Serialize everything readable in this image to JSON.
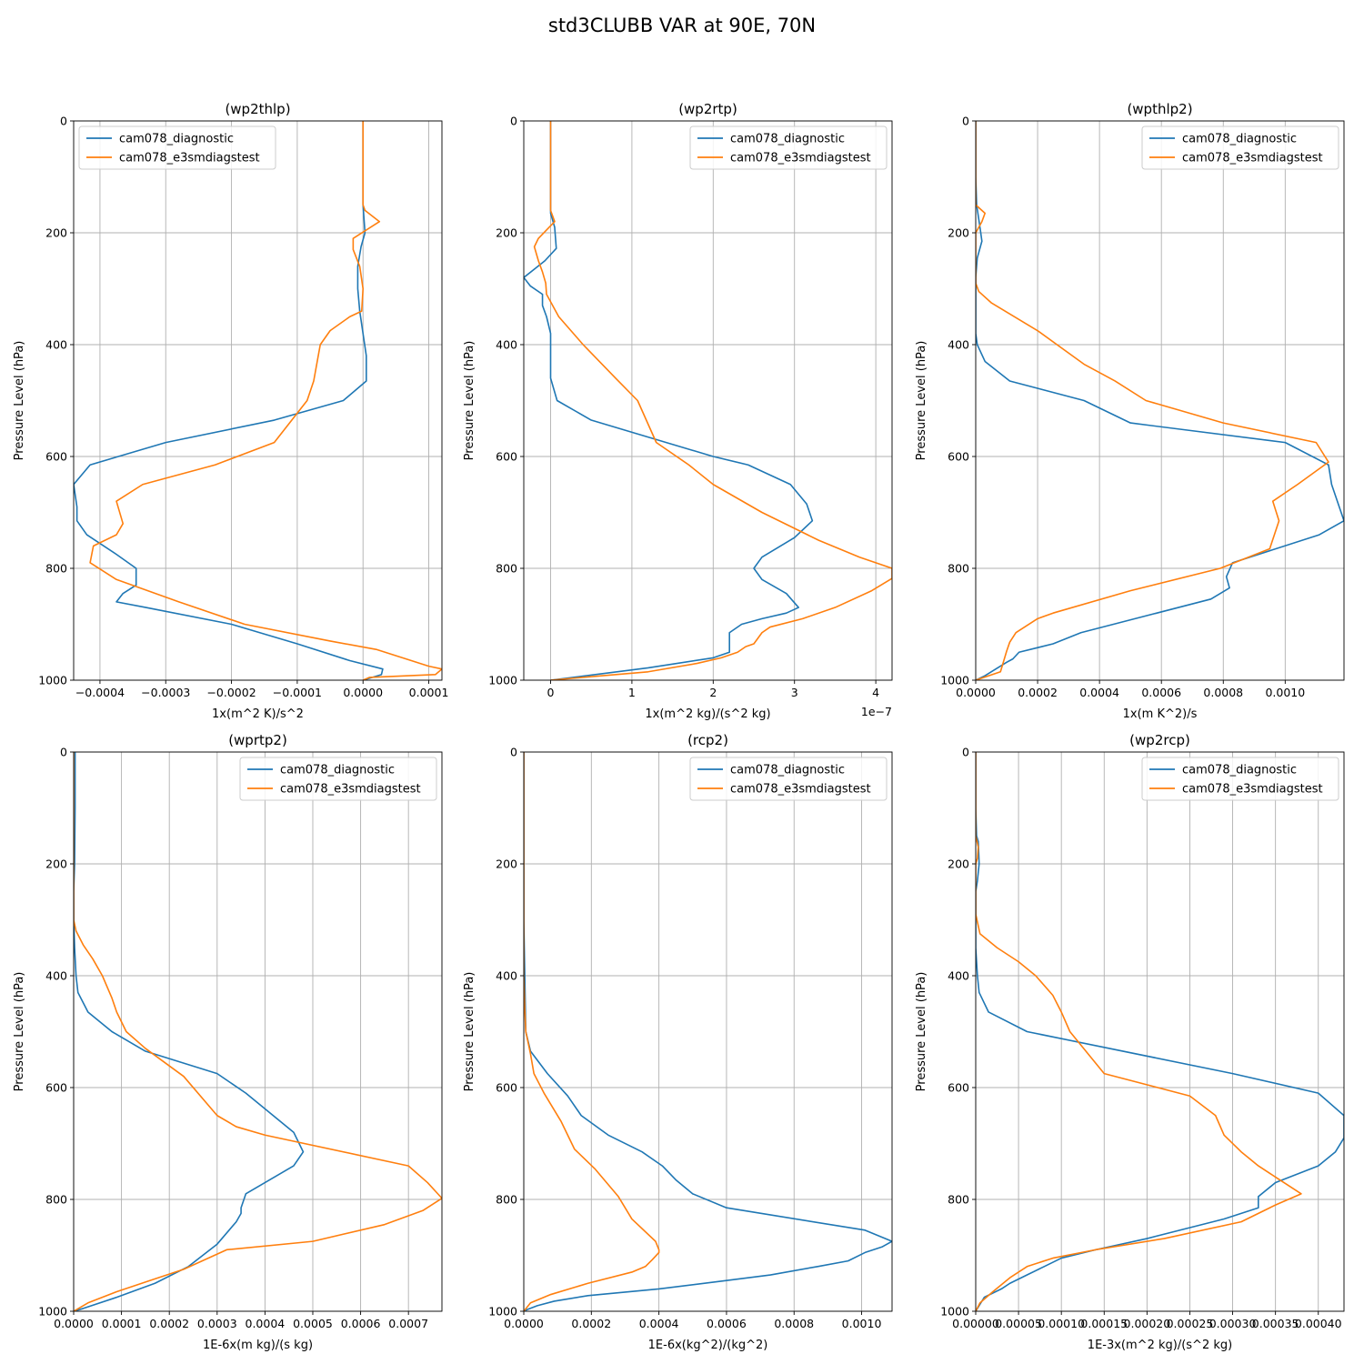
{
  "figure_title": "std3CLUBB VAR at 90E, 70N",
  "colors": {
    "series1": "#1f77b4",
    "series2": "#ff7f0e",
    "grid": "#b0b0b0"
  },
  "chart_data": [
    {
      "type": "line",
      "title": "(wp2thlp)",
      "xlabel": "1x(m^2 K)/s^2",
      "ylabel": "Pressure Level (hPa)",
      "xlim": [
        -0.00044,
        0.00012
      ],
      "ylim": [
        1000,
        0
      ],
      "xticks": [
        -0.0004,
        -0.0003,
        -0.0002,
        -0.0001,
        0.0,
        0.0001
      ],
      "xticklabels": [
        "−0.0004",
        "−0.0003",
        "−0.0002",
        "−0.0001",
        "0.0000",
        "0.0001"
      ],
      "yticks": [
        0,
        200,
        400,
        600,
        800,
        1000
      ],
      "yticklabels": [
        "0",
        "200",
        "400",
        "600",
        "800",
        "1000"
      ],
      "legend": "upper-left",
      "grid": true,
      "series": [
        {
          "name": "cam078_diagnostic",
          "x": [
            0.0,
            0.0,
            0.0,
            3e-06,
            -3e-06,
            -8e-06,
            -8e-06,
            -5e-06,
            0.0,
            5e-06,
            5e-06,
            -3e-05,
            -0.000135,
            -0.0003,
            -0.000415,
            -0.00044,
            -0.000435,
            -0.000435,
            -0.00042,
            -0.000375,
            -0.000345,
            -0.000345,
            -0.000365,
            -0.000375,
            -0.00033,
            -0.0002,
            -0.0001,
            -2e-05,
            3e-05,
            2.8e-05,
            0.0
          ],
          "y": [
            0,
            100,
            150,
            200,
            225,
            260,
            300,
            340,
            380,
            420,
            465,
            500,
            535,
            575,
            615,
            650,
            690,
            715,
            740,
            775,
            800,
            830,
            845,
            860,
            870,
            900,
            935,
            965,
            980,
            990,
            1000
          ]
        },
        {
          "name": "cam078_e3smdiagstest",
          "x": [
            0.0,
            0.0,
            0.0,
            3e-06,
            2.5e-05,
            -1.5e-05,
            -1.5e-05,
            -5e-06,
            0.0,
            -2e-06,
            -2e-05,
            -5e-05,
            -6.5e-05,
            -7.5e-05,
            -8.5e-05,
            -0.000135,
            -0.000225,
            -0.000335,
            -0.000375,
            -0.000365,
            -0.000375,
            -0.00041,
            -0.000415,
            -0.000375,
            -0.00028,
            -0.00018,
            -5e-05,
            2e-05,
            0.0001,
            0.00012,
            0.00011,
            1e-05,
            0.0
          ],
          "y": [
            0,
            100,
            150,
            160,
            180,
            210,
            230,
            260,
            300,
            340,
            350,
            375,
            400,
            465,
            500,
            575,
            615,
            650,
            680,
            720,
            740,
            760,
            790,
            820,
            860,
            900,
            930,
            945,
            975,
            980,
            990,
            995,
            1000
          ]
        }
      ]
    },
    {
      "type": "line",
      "title": "(wp2rtp)",
      "xlabel": "1x(m^2 kg)/(s^2 kg)",
      "ylabel": "Pressure Level (hPa)",
      "offset_label": "1e−7",
      "xlim": [
        -0.33,
        4.2
      ],
      "ylim": [
        1000,
        0
      ],
      "xticks": [
        0,
        1,
        2,
        3,
        4
      ],
      "xticklabels": [
        "0",
        "1",
        "2",
        "3",
        "4"
      ],
      "yticks": [
        0,
        200,
        400,
        600,
        800,
        1000
      ],
      "yticklabels": [
        "0",
        "200",
        "400",
        "600",
        "800",
        "1000"
      ],
      "legend": "upper-right",
      "grid": true,
      "series": [
        {
          "name": "cam078_diagnostic",
          "x": [
            0.0,
            0.0,
            0.0,
            0.0,
            0.05,
            0.07,
            -0.07,
            -0.2,
            -0.33,
            -0.25,
            -0.1,
            -0.1,
            -0.05,
            0.0,
            0.0,
            0.0,
            0.08,
            0.5,
            2.0,
            2.43,
            2.95,
            3.15,
            3.22,
            3.0,
            2.6,
            2.5,
            2.6,
            2.9,
            3.05,
            2.9,
            2.6,
            2.35,
            2.2,
            2.2,
            2.2,
            2.2,
            2.0,
            1.2,
            0.0
          ],
          "y": [
            0,
            100,
            150,
            165,
            190,
            228,
            250,
            265,
            280,
            295,
            310,
            330,
            350,
            380,
            400,
            460,
            500,
            535,
            600,
            615,
            650,
            685,
            715,
            745,
            780,
            800,
            820,
            845,
            870,
            880,
            890,
            900,
            915,
            925,
            940,
            950,
            960,
            978,
            1000
          ]
        },
        {
          "name": "cam078_e3smdiagstest",
          "x": [
            0.0,
            0.0,
            0.0,
            0.0,
            0.05,
            -0.15,
            -0.2,
            -0.15,
            -0.1,
            -0.06,
            -0.05,
            0.1,
            0.4,
            0.8,
            1.07,
            1.3,
            1.7,
            2.0,
            2.6,
            3.3,
            3.8,
            4.2,
            4.2,
            3.95,
            3.5,
            3.1,
            2.7,
            2.6,
            2.5,
            2.4,
            2.3,
            2.1,
            1.8,
            1.2,
            0.0
          ],
          "y": [
            0,
            100,
            150,
            160,
            180,
            210,
            225,
            250,
            270,
            290,
            310,
            350,
            400,
            460,
            500,
            575,
            615,
            650,
            700,
            750,
            780,
            800,
            818,
            840,
            870,
            890,
            905,
            915,
            935,
            940,
            950,
            960,
            970,
            985,
            1000
          ]
        }
      ]
    },
    {
      "type": "line",
      "title": "(wpthlp2)",
      "xlabel": "1x(m K^2)/s",
      "ylabel": "Pressure Level (hPa)",
      "xlim": [
        0.0,
        0.00119
      ],
      "ylim": [
        1000,
        0
      ],
      "xticks": [
        0.0,
        0.0002,
        0.0004,
        0.0006,
        0.0008,
        0.001
      ],
      "xticklabels": [
        "0.0000",
        "0.0002",
        "0.0004",
        "0.0006",
        "0.0008",
        "0.0010"
      ],
      "yticks": [
        0,
        200,
        400,
        600,
        800,
        1000
      ],
      "yticklabels": [
        "0",
        "200",
        "400",
        "600",
        "800",
        "1000"
      ],
      "legend": "upper-right",
      "grid": true,
      "series": [
        {
          "name": "cam078_diagnostic",
          "x": [
            0.0,
            0.0,
            3e-06,
            1.5e-05,
            2e-05,
            5e-06,
            0.0,
            0.0,
            0.0,
            5e-06,
            3e-05,
            0.00011,
            0.00035,
            0.0005,
            0.001,
            0.00114,
            0.00115,
            0.00119,
            0.00111,
            0.00083,
            0.00081,
            0.00082,
            0.00076,
            0.00055,
            0.00034,
            0.00025,
            0.00014,
            0.00012,
            0.0001,
            3e-05,
            0.0
          ],
          "y": [
            0,
            100,
            150,
            195,
            215,
            245,
            280,
            320,
            380,
            400,
            430,
            465,
            500,
            540,
            575,
            615,
            650,
            715,
            740,
            790,
            815,
            835,
            855,
            885,
            915,
            935,
            950,
            962,
            968,
            992,
            1000
          ]
        },
        {
          "name": "cam078_e3smdiagstest",
          "x": [
            0.0,
            0.0,
            0.0,
            3e-05,
            2e-05,
            0.0,
            0.0,
            0.0,
            1e-05,
            5e-05,
            0.0002,
            0.00035,
            0.00045,
            0.00055,
            0.0008,
            0.0011,
            0.00114,
            0.00104,
            0.00096,
            0.00098,
            0.00095,
            0.00079,
            0.0005,
            0.00025,
            0.0002,
            0.00013,
            0.00011,
            0.0001,
            8e-05,
            0.0
          ],
          "y": [
            0,
            100,
            150,
            165,
            180,
            200,
            250,
            290,
            305,
            325,
            375,
            435,
            465,
            500,
            540,
            575,
            610,
            650,
            680,
            715,
            765,
            800,
            840,
            880,
            890,
            915,
            932,
            948,
            985,
            1000
          ]
        }
      ]
    },
    {
      "type": "line",
      "title": "(wprtp2)",
      "xlabel": "1E-6x(m kg)/(s kg)",
      "ylabel": "Pressure Level (hPa)",
      "xlim": [
        0.0,
        0.00077
      ],
      "ylim": [
        1000,
        0
      ],
      "xticks": [
        0.0,
        0.0001,
        0.0002,
        0.0003,
        0.0004,
        0.0005,
        0.0006,
        0.0007
      ],
      "xticklabels": [
        "0.0000",
        "0.0001",
        "0.0002",
        "0.0003",
        "0.0004",
        "0.0005",
        "0.0006",
        "0.0007"
      ],
      "yticks": [
        0,
        200,
        400,
        600,
        800,
        1000
      ],
      "yticklabels": [
        "0",
        "200",
        "400",
        "600",
        "800",
        "1000"
      ],
      "legend": "upper-right",
      "grid": true,
      "series": [
        {
          "name": "cam078_diagnostic",
          "x": [
            3e-06,
            3e-06,
            2e-06,
            0.0,
            0.0,
            2e-06,
            5e-06,
            9e-06,
            3e-05,
            8e-05,
            0.00015,
            0.0003,
            0.00036,
            0.00046,
            0.00048,
            0.00046,
            0.00036,
            0.00035,
            0.00035,
            0.00034,
            0.0003,
            0.00024,
            0.00017,
            9e-05,
            2e-05,
            0.0
          ],
          "y": [
            0,
            100,
            200,
            250,
            300,
            350,
            400,
            430,
            465,
            500,
            535,
            575,
            610,
            680,
            715,
            740,
            790,
            815,
            825,
            840,
            880,
            920,
            950,
            975,
            995,
            1000
          ]
        },
        {
          "name": "cam078_e3smdiagstest",
          "x": [
            0.0,
            0.0,
            0.0,
            5e-06,
            2e-05,
            4e-05,
            6e-05,
            8e-05,
            9e-05,
            0.00011,
            0.00015,
            0.00023,
            0.0003,
            0.00034,
            0.0004,
            0.0007,
            0.00074,
            0.00077,
            0.00073,
            0.00065,
            0.0005,
            0.00032,
            0.00023,
            0.00016,
            9e-05,
            3e-05,
            0.0
          ],
          "y": [
            0,
            100,
            300,
            320,
            345,
            370,
            400,
            440,
            465,
            500,
            530,
            580,
            650,
            670,
            685,
            740,
            770,
            798,
            820,
            845,
            875,
            890,
            925,
            945,
            965,
            985,
            1000
          ]
        }
      ]
    },
    {
      "type": "line",
      "title": "(rcp2)",
      "xlabel": "1E-6x(kg^2)/(kg^2)",
      "ylabel": "Pressure Level (hPa)",
      "xlim": [
        0.0,
        0.00109
      ],
      "ylim": [
        1000,
        0
      ],
      "xticks": [
        0.0,
        0.0002,
        0.0004,
        0.0006,
        0.0008,
        0.001
      ],
      "xticklabels": [
        "0.0000",
        "0.0002",
        "0.0004",
        "0.0006",
        "0.0008",
        "0.0010"
      ],
      "yticks": [
        0,
        200,
        400,
        600,
        800,
        1000
      ],
      "yticklabels": [
        "0",
        "200",
        "400",
        "600",
        "800",
        "1000"
      ],
      "legend": "upper-right",
      "grid": true,
      "series": [
        {
          "name": "cam078_diagnostic",
          "x": [
            0.0,
            0.0,
            0.0,
            3e-06,
            6e-06,
            2e-05,
            7e-05,
            0.00013,
            0.00017,
            0.00025,
            0.00035,
            0.00041,
            0.00045,
            0.0005,
            0.0006,
            0.00101,
            0.00109,
            0.00106,
            0.00101,
            0.00096,
            0.00087,
            0.00073,
            0.0006,
            0.0004,
            0.00019,
            9e-05,
            4e-05,
            1e-05,
            0.0
          ],
          "y": [
            0,
            200,
            300,
            400,
            500,
            535,
            575,
            615,
            650,
            685,
            715,
            740,
            765,
            790,
            815,
            855,
            875,
            885,
            895,
            910,
            920,
            935,
            945,
            960,
            972,
            982,
            990,
            997,
            1000
          ]
        },
        {
          "name": "cam078_e3smdiagstest",
          "x": [
            0.0,
            0.0,
            0.0,
            0.0,
            3e-06,
            6e-06,
            2e-05,
            3e-05,
            6e-05,
            0.00011,
            0.00015,
            0.00021,
            0.00028,
            0.00032,
            0.00039,
            0.0004,
            0.0004,
            0.00038,
            0.00036,
            0.00032,
            0.00019,
            8e-05,
            2e-05,
            0.0
          ],
          "y": [
            0,
            200,
            300,
            400,
            460,
            500,
            540,
            575,
            610,
            660,
            710,
            745,
            795,
            835,
            875,
            890,
            895,
            908,
            920,
            930,
            950,
            970,
            985,
            1000
          ]
        }
      ]
    },
    {
      "type": "line",
      "title": "(wp2rcp)",
      "xlabel": "1E-3x(m^2 kg)/(s^2 kg)",
      "ylabel": "Pressure Level (hPa)",
      "xlim": [
        0.0,
        0.00043
      ],
      "ylim": [
        1000,
        0
      ],
      "xticks": [
        0.0,
        5e-05,
        0.0001,
        0.00015,
        0.0002,
        0.00025,
        0.0003,
        0.00035,
        0.0004
      ],
      "xticklabels": [
        "0.00000",
        "0.00005",
        "0.00010",
        "0.00015",
        "0.00020",
        "0.00025",
        "0.00030",
        "0.00035",
        "0.00040"
      ],
      "yticks": [
        0,
        200,
        400,
        600,
        800,
        1000
      ],
      "yticklabels": [
        "0",
        "200",
        "400",
        "600",
        "800",
        "1000"
      ],
      "legend": "upper-right",
      "grid": true,
      "series": [
        {
          "name": "cam078_diagnostic",
          "x": [
            0.0,
            0.0,
            1e-06,
            3e-06,
            4e-06,
            2e-06,
            0.0,
            0.0,
            0.0,
            2e-06,
            4e-06,
            1.5e-05,
            6e-05,
            0.0003,
            0.0004,
            0.00043,
            0.00043,
            0.00042,
            0.0004,
            0.00035,
            0.00033,
            0.00033,
            0.00029,
            0.0002,
            0.00014,
            0.0001,
            8e-05,
            6e-05,
            4e-05,
            3e-05,
            1e-05,
            0.0
          ],
          "y": [
            0,
            100,
            150,
            160,
            200,
            230,
            250,
            300,
            350,
            400,
            430,
            465,
            500,
            575,
            610,
            650,
            690,
            715,
            740,
            770,
            795,
            815,
            835,
            870,
            890,
            905,
            920,
            935,
            950,
            960,
            975,
            1000
          ]
        },
        {
          "name": "cam078_e3smdiagstest",
          "x": [
            0.0,
            0.0,
            0.0,
            3e-06,
            2e-06,
            0.0,
            0.0,
            0.0,
            5e-06,
            2.5e-05,
            5e-05,
            7e-05,
            9e-05,
            0.0001,
            0.00011,
            0.00015,
            0.00025,
            0.00028,
            0.00029,
            0.00031,
            0.00033,
            0.00035,
            0.00038,
            0.00035,
            0.00031,
            0.00022,
            0.00014,
            9e-05,
            6e-05,
            4e-05,
            2e-05,
            5e-06,
            0.0
          ],
          "y": [
            0,
            100,
            150,
            170,
            190,
            200,
            250,
            290,
            325,
            350,
            375,
            400,
            435,
            465,
            500,
            575,
            615,
            650,
            685,
            715,
            740,
            760,
            790,
            810,
            840,
            870,
            890,
            905,
            920,
            940,
            965,
            985,
            1000
          ]
        }
      ]
    }
  ]
}
